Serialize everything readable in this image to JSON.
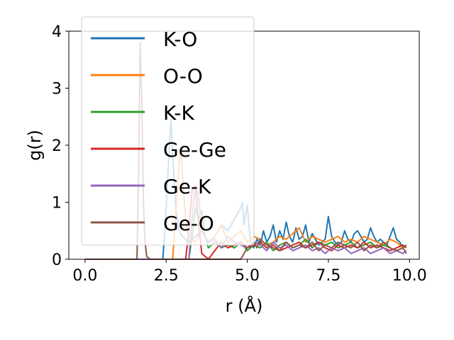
{
  "chart_data": {
    "type": "line",
    "title": "",
    "xlabel": "r (Å)",
    "ylabel": "g(r)",
    "xlim": [
      -0.5,
      10.3
    ],
    "ylim": [
      0,
      4.0
    ],
    "xticks": [
      0.0,
      2.5,
      5.0,
      7.5,
      10.0
    ],
    "xtick_labels": [
      "0.0",
      "2.5",
      "5.0",
      "7.5",
      "10.0"
    ],
    "yticks": [
      0,
      1,
      2,
      3,
      4
    ],
    "ytick_labels": [
      "0",
      "1",
      "2",
      "3",
      "4"
    ],
    "grid": false,
    "legend_position": "top-left",
    "series": [
      {
        "name": "K-O",
        "color": "#1f77b4",
        "x": [
          0.0,
          2.4,
          2.5,
          2.6,
          2.65,
          2.7,
          2.8,
          2.9,
          3.0,
          3.2,
          3.4,
          3.6,
          3.8,
          4.0,
          4.2,
          4.4,
          4.6,
          4.8,
          4.85,
          4.9,
          5.0,
          5.05,
          5.1,
          5.2,
          5.3,
          5.4,
          5.5,
          5.6,
          5.7,
          5.8,
          5.9,
          6.0,
          6.1,
          6.2,
          6.3,
          6.4,
          6.5,
          6.6,
          6.7,
          6.8,
          6.9,
          7.0,
          7.1,
          7.2,
          7.3,
          7.4,
          7.5,
          7.6,
          7.7,
          7.8,
          7.9,
          8.0,
          8.1,
          8.2,
          8.3,
          8.4,
          8.5,
          8.6,
          8.7,
          8.8,
          8.9,
          9.0,
          9.1,
          9.2,
          9.3,
          9.4,
          9.5,
          9.6,
          9.7,
          9.8,
          9.9
        ],
        "y": [
          0,
          0,
          0.9,
          2.0,
          2.45,
          1.8,
          0.9,
          0.5,
          0.4,
          0.3,
          0.4,
          0.5,
          0.3,
          0.4,
          0.6,
          0.5,
          0.7,
          0.9,
          1.0,
          0.6,
          0.95,
          0.6,
          0.3,
          0.2,
          0.35,
          0.25,
          0.5,
          0.3,
          0.4,
          0.6,
          0.3,
          0.5,
          0.35,
          0.65,
          0.4,
          0.3,
          0.55,
          0.35,
          0.4,
          0.6,
          0.3,
          0.45,
          0.35,
          0.25,
          0.3,
          0.35,
          0.75,
          0.4,
          0.3,
          0.25,
          0.3,
          0.5,
          0.35,
          0.3,
          0.45,
          0.5,
          0.4,
          0.3,
          0.35,
          0.55,
          0.4,
          0.3,
          0.35,
          0.3,
          0.25,
          0.4,
          0.55,
          0.35,
          0.3,
          0.2,
          0.25
        ]
      },
      {
        "name": "O-O",
        "color": "#ff7f0e",
        "x": [
          0.0,
          2.7,
          2.8,
          2.9,
          2.95,
          3.0,
          3.1,
          3.2,
          3.4,
          3.6,
          3.8,
          4.0,
          4.2,
          4.4,
          4.6,
          4.8,
          5.0,
          5.2,
          5.4,
          5.6,
          5.8,
          6.0,
          6.2,
          6.4,
          6.6,
          6.8,
          7.0,
          7.2,
          7.4,
          7.6,
          7.8,
          8.0,
          8.2,
          8.4,
          8.6,
          8.8,
          9.0,
          9.2,
          9.4,
          9.6,
          9.8,
          9.9
        ],
        "y": [
          0,
          0,
          0.8,
          1.7,
          1.9,
          1.5,
          0.7,
          0.4,
          0.3,
          0.5,
          0.3,
          0.4,
          0.6,
          0.3,
          0.4,
          0.5,
          0.3,
          0.4,
          0.35,
          0.25,
          0.3,
          0.4,
          0.35,
          0.45,
          0.55,
          0.3,
          0.4,
          0.35,
          0.3,
          0.35,
          0.4,
          0.3,
          0.35,
          0.3,
          0.4,
          0.35,
          0.3,
          0.25,
          0.35,
          0.3,
          0.2,
          0.25
        ]
      },
      {
        "name": "K-K",
        "color": "#2ca02c",
        "x": [
          0.0,
          3.2,
          3.3,
          3.4,
          3.5,
          3.6,
          3.7,
          3.8,
          4.0,
          4.2,
          4.4,
          4.6,
          4.8,
          5.0,
          5.2,
          5.4,
          5.6,
          5.8,
          6.0,
          6.2,
          6.4,
          6.6,
          6.8,
          7.0,
          7.2,
          7.4,
          7.6,
          7.8,
          8.0,
          8.2,
          8.4,
          8.6,
          8.8,
          9.0,
          9.2,
          9.4,
          9.6,
          9.8,
          9.9
        ],
        "y": [
          0,
          0,
          0.4,
          0.9,
          0.7,
          0.85,
          0.4,
          0.2,
          0.3,
          0.2,
          0.25,
          0.2,
          0.3,
          0.15,
          0.25,
          0.2,
          0.3,
          0.15,
          0.25,
          0.3,
          0.2,
          0.25,
          0.35,
          0.2,
          0.3,
          0.25,
          0.3,
          0.2,
          0.25,
          0.3,
          0.2,
          0.25,
          0.3,
          0.2,
          0.25,
          0.2,
          0.15,
          0.2,
          0.25
        ]
      },
      {
        "name": "Ge-Ge",
        "color": "#d62728",
        "x": [
          0.0,
          3.1,
          3.2,
          3.3,
          3.4,
          3.5,
          3.6,
          3.8,
          4.0,
          4.2,
          4.4,
          4.6,
          4.8,
          5.0,
          5.2,
          5.4,
          5.6,
          5.8,
          6.0,
          6.2,
          6.4,
          6.6,
          6.8,
          7.0,
          7.2,
          7.4,
          7.6,
          7.8,
          8.0,
          8.2,
          8.4,
          8.6,
          8.8,
          9.0,
          9.2,
          9.4,
          9.6,
          9.8,
          9.9
        ],
        "y": [
          0,
          0,
          0.5,
          1.2,
          1.3,
          0.6,
          0.1,
          0.0,
          0.15,
          0.3,
          0.2,
          0.25,
          0.3,
          0.2,
          0.25,
          0.3,
          0.2,
          0.25,
          0.15,
          0.2,
          0.25,
          0.3,
          0.2,
          0.25,
          0.3,
          0.2,
          0.15,
          0.25,
          0.2,
          0.25,
          0.2,
          0.3,
          0.2,
          0.25,
          0.2,
          0.15,
          0.2,
          0.25,
          0.2
        ]
      },
      {
        "name": "Ge-K",
        "color": "#9467bd",
        "x": [
          0.0,
          3.2,
          3.3,
          3.4,
          3.5,
          3.6,
          3.8,
          4.0,
          4.2,
          4.4,
          4.6,
          4.8,
          5.0,
          5.2,
          5.4,
          5.6,
          5.8,
          6.0,
          6.2,
          6.4,
          6.6,
          6.8,
          7.0,
          7.2,
          7.4,
          7.6,
          7.8,
          8.0,
          8.2,
          8.4,
          8.6,
          8.8,
          9.0,
          9.2,
          9.4,
          9.6,
          9.8,
          9.9
        ],
        "y": [
          0,
          0,
          0.7,
          1.3,
          1.1,
          0.5,
          0.3,
          0.35,
          0.2,
          0.4,
          0.3,
          0.25,
          0.2,
          0.3,
          0.25,
          0.15,
          0.3,
          0.2,
          0.25,
          0.15,
          0.2,
          0.25,
          0.15,
          0.2,
          0.1,
          0.2,
          0.15,
          0.2,
          0.1,
          0.15,
          0.2,
          0.1,
          0.15,
          0.2,
          0.1,
          0.15,
          0.1,
          0.15
        ]
      },
      {
        "name": "Ge-O",
        "color": "#8c564b",
        "x": [
          0.0,
          1.6,
          1.65,
          1.7,
          1.75,
          1.8,
          1.85,
          1.9,
          2.0,
          4.8,
          5.0,
          5.1,
          5.2,
          5.3,
          5.4,
          5.5,
          5.6,
          5.8,
          6.0,
          6.2,
          6.4,
          6.6,
          6.8,
          7.0,
          7.2,
          7.4,
          7.6,
          7.8,
          8.0,
          8.2,
          8.4,
          8.6,
          8.8,
          9.0,
          9.2,
          9.4,
          9.6,
          9.8,
          9.9
        ],
        "y": [
          0,
          0,
          1.5,
          3.8,
          2.8,
          1.0,
          0.3,
          0.05,
          0,
          0,
          0.2,
          0.25,
          0.3,
          0.2,
          0.35,
          0.3,
          0.25,
          0.2,
          0.15,
          0.3,
          0.2,
          0.25,
          0.2,
          0.3,
          0.15,
          0.25,
          0.2,
          0.3,
          0.25,
          0.2,
          0.3,
          0.15,
          0.25,
          0.2,
          0.3,
          0.2,
          0.15,
          0.2,
          0.1
        ]
      }
    ]
  }
}
